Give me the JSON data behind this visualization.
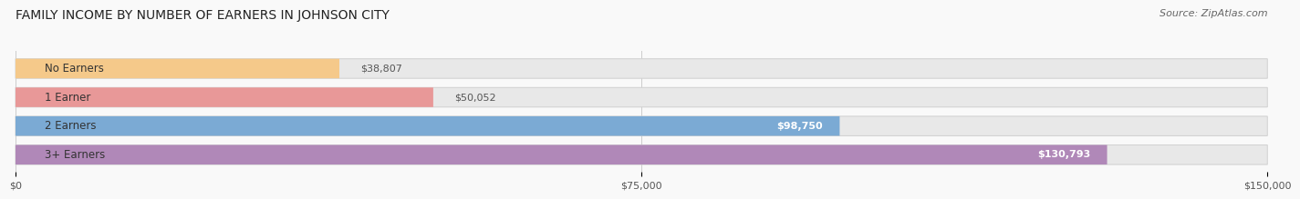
{
  "title": "FAMILY INCOME BY NUMBER OF EARNERS IN JOHNSON CITY",
  "source": "Source: ZipAtlas.com",
  "categories": [
    "No Earners",
    "1 Earner",
    "2 Earners",
    "3+ Earners"
  ],
  "values": [
    38807,
    50052,
    98750,
    130793
  ],
  "labels": [
    "$38,807",
    "$50,052",
    "$98,750",
    "$130,793"
  ],
  "bar_colors": [
    "#f5c98a",
    "#e89898",
    "#7baad4",
    "#b088b8"
  ],
  "label_colors": [
    "#555555",
    "#555555",
    "#ffffff",
    "#ffffff"
  ],
  "xmax": 150000,
  "xticks": [
    0,
    75000,
    150000
  ],
  "xticklabels": [
    "$0",
    "$75,000",
    "$150,000"
  ],
  "title_fontsize": 10,
  "source_fontsize": 8,
  "bar_label_fontsize": 8,
  "category_fontsize": 8.5,
  "background_color": "#f9f9f9",
  "bar_height": 0.68,
  "track_color": "#e8e8e8",
  "track_edge_color": "#d0d0d0"
}
